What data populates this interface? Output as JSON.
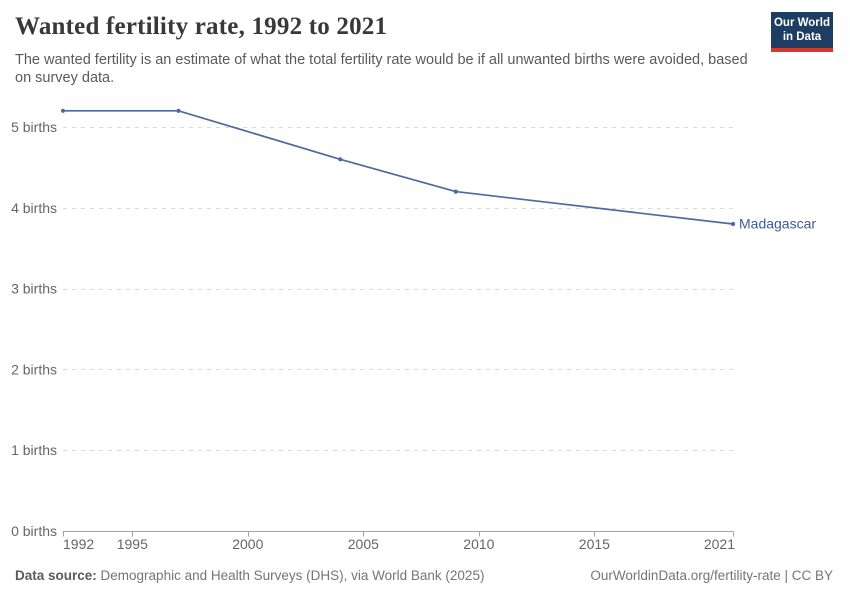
{
  "header": {
    "title": "Wanted fertility rate, 1992 to 2021",
    "subtitle": "The wanted fertility is an estimate of what the total fertility rate would be if all unwanted births were avoided, based on survey data.",
    "logo": {
      "line1": "Our World",
      "line2": "in Data",
      "bg_color": "#1d3d63",
      "stripe_color": "#d7382e"
    }
  },
  "chart_data": {
    "type": "line",
    "title": "Wanted fertility rate, 1992 to 2021",
    "xlabel": "",
    "ylabel": "",
    "xlim": [
      1992,
      2021
    ],
    "ylim": [
      0,
      5.5
    ],
    "grid": "horizontal-dashed",
    "legend_position": "end-of-line-label",
    "x_ticks": [
      1992,
      1995,
      2000,
      2005,
      2010,
      2015,
      2021
    ],
    "y_ticks": [
      {
        "value": 0,
        "label": "0 births"
      },
      {
        "value": 1,
        "label": "1 births"
      },
      {
        "value": 2,
        "label": "2 births"
      },
      {
        "value": 3,
        "label": "3 births"
      },
      {
        "value": 4,
        "label": "4 births"
      },
      {
        "value": 5,
        "label": "5 births"
      }
    ],
    "series": [
      {
        "name": "Madagascar",
        "color": "#4c6a9c",
        "label_color": "#3d5c94",
        "points": [
          {
            "x": 1992,
            "y": 5.2
          },
          {
            "x": 1997,
            "y": 5.2
          },
          {
            "x": 2004,
            "y": 4.6
          },
          {
            "x": 2009,
            "y": 4.2
          },
          {
            "x": 2021,
            "y": 3.8
          }
        ]
      }
    ]
  },
  "footer": {
    "source_label": "Data source:",
    "source_text": " Demographic and Health Surveys (DHS), via World Bank (2025)",
    "rights": "OurWorldinData.org/fertility-rate | CC BY"
  }
}
